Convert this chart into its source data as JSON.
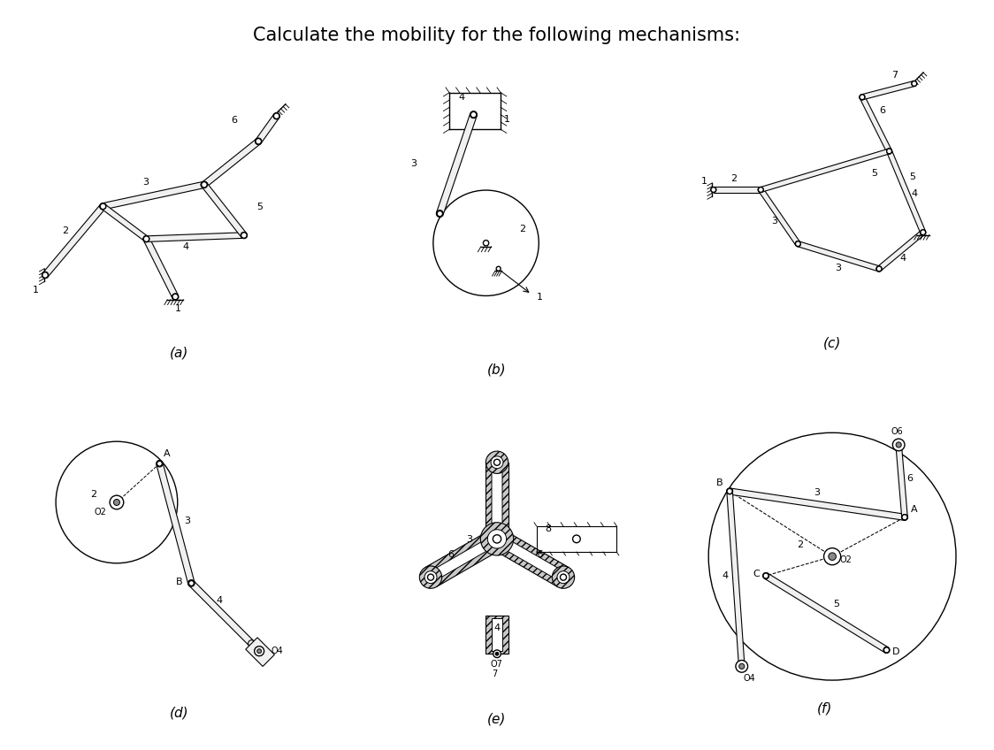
{
  "title": "Calculate the mobility for the following mechanisms:",
  "title_fontsize": 15,
  "background_color": "#ffffff",
  "labels": {
    "a": "(a)",
    "b": "(b)",
    "c": "(c)",
    "d": "(d)",
    "e": "(e)",
    "f": "(f)"
  }
}
